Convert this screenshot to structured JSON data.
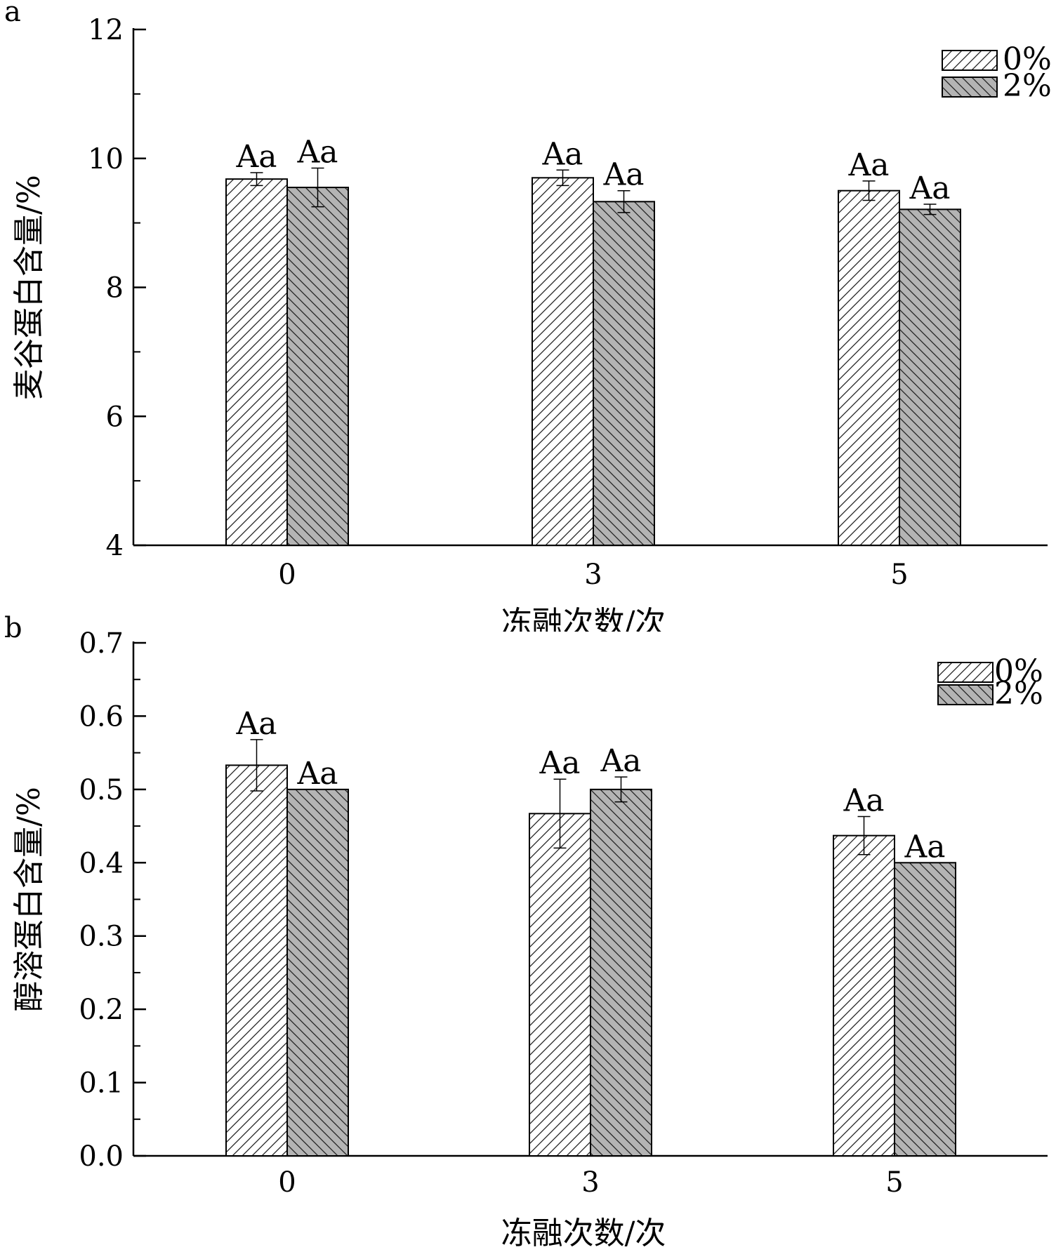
{
  "legend": {
    "0": {
      "label": "0%",
      "pattern": "hatch-right",
      "fill": "#ffffff"
    },
    "1": {
      "label": "2%",
      "pattern": "hatch-left",
      "fill": "#b4b4b4"
    }
  },
  "panels": {
    "0": {
      "label": "a",
      "ylabel": "麦谷蛋白含量/%",
      "xlabel": "冻融次数/次",
      "yticks": [
        "4",
        "6",
        "8",
        "10",
        "12"
      ]
    },
    "1": {
      "label": "b",
      "ylabel": "醇溶蛋白含量/%",
      "xlabel": "冻融次数/次",
      "yticks": [
        "0.0",
        "0.1",
        "0.2",
        "0.3",
        "0.4",
        "0.5",
        "0.6",
        "0.7"
      ]
    }
  },
  "chart_data": [
    {
      "type": "bar",
      "panel": "a",
      "categories": [
        "0",
        "3",
        "5"
      ],
      "xlabel": "冻融次数/次",
      "ylabel": "麦谷蛋白含量/%",
      "ylim": [
        4,
        12
      ],
      "yticks": [
        4,
        6,
        8,
        10,
        12
      ],
      "legend_position": "top-right",
      "grid": false,
      "series": [
        {
          "name": "0%",
          "values": [
            9.68,
            9.7,
            9.5
          ],
          "errors": [
            0.1,
            0.12,
            0.15
          ],
          "labels": [
            "Aa",
            "Aa",
            "Aa"
          ]
        },
        {
          "name": "2%",
          "values": [
            9.55,
            9.33,
            9.21
          ],
          "errors": [
            0.3,
            0.17,
            0.08
          ],
          "labels": [
            "Aa",
            "Aa",
            "Aa"
          ]
        }
      ]
    },
    {
      "type": "bar",
      "panel": "b",
      "categories": [
        "0",
        "3",
        "5"
      ],
      "xlabel": "冻融次数/次",
      "ylabel": "醇溶蛋白含量/%",
      "ylim": [
        0,
        0.7
      ],
      "yticks": [
        0.0,
        0.1,
        0.2,
        0.3,
        0.4,
        0.5,
        0.6,
        0.7
      ],
      "legend_position": "top-right",
      "grid": false,
      "series": [
        {
          "name": "0%",
          "values": [
            0.533,
            0.467,
            0.437
          ],
          "errors": [
            0.035,
            0.047,
            0.026
          ],
          "labels": [
            "Aa",
            "Aa",
            "Aa"
          ]
        },
        {
          "name": "2%",
          "values": [
            0.5,
            0.5,
            0.4
          ],
          "errors": [
            0,
            0.017,
            0
          ],
          "labels": [
            "Aa",
            "Aa",
            "Aa"
          ]
        }
      ]
    }
  ]
}
